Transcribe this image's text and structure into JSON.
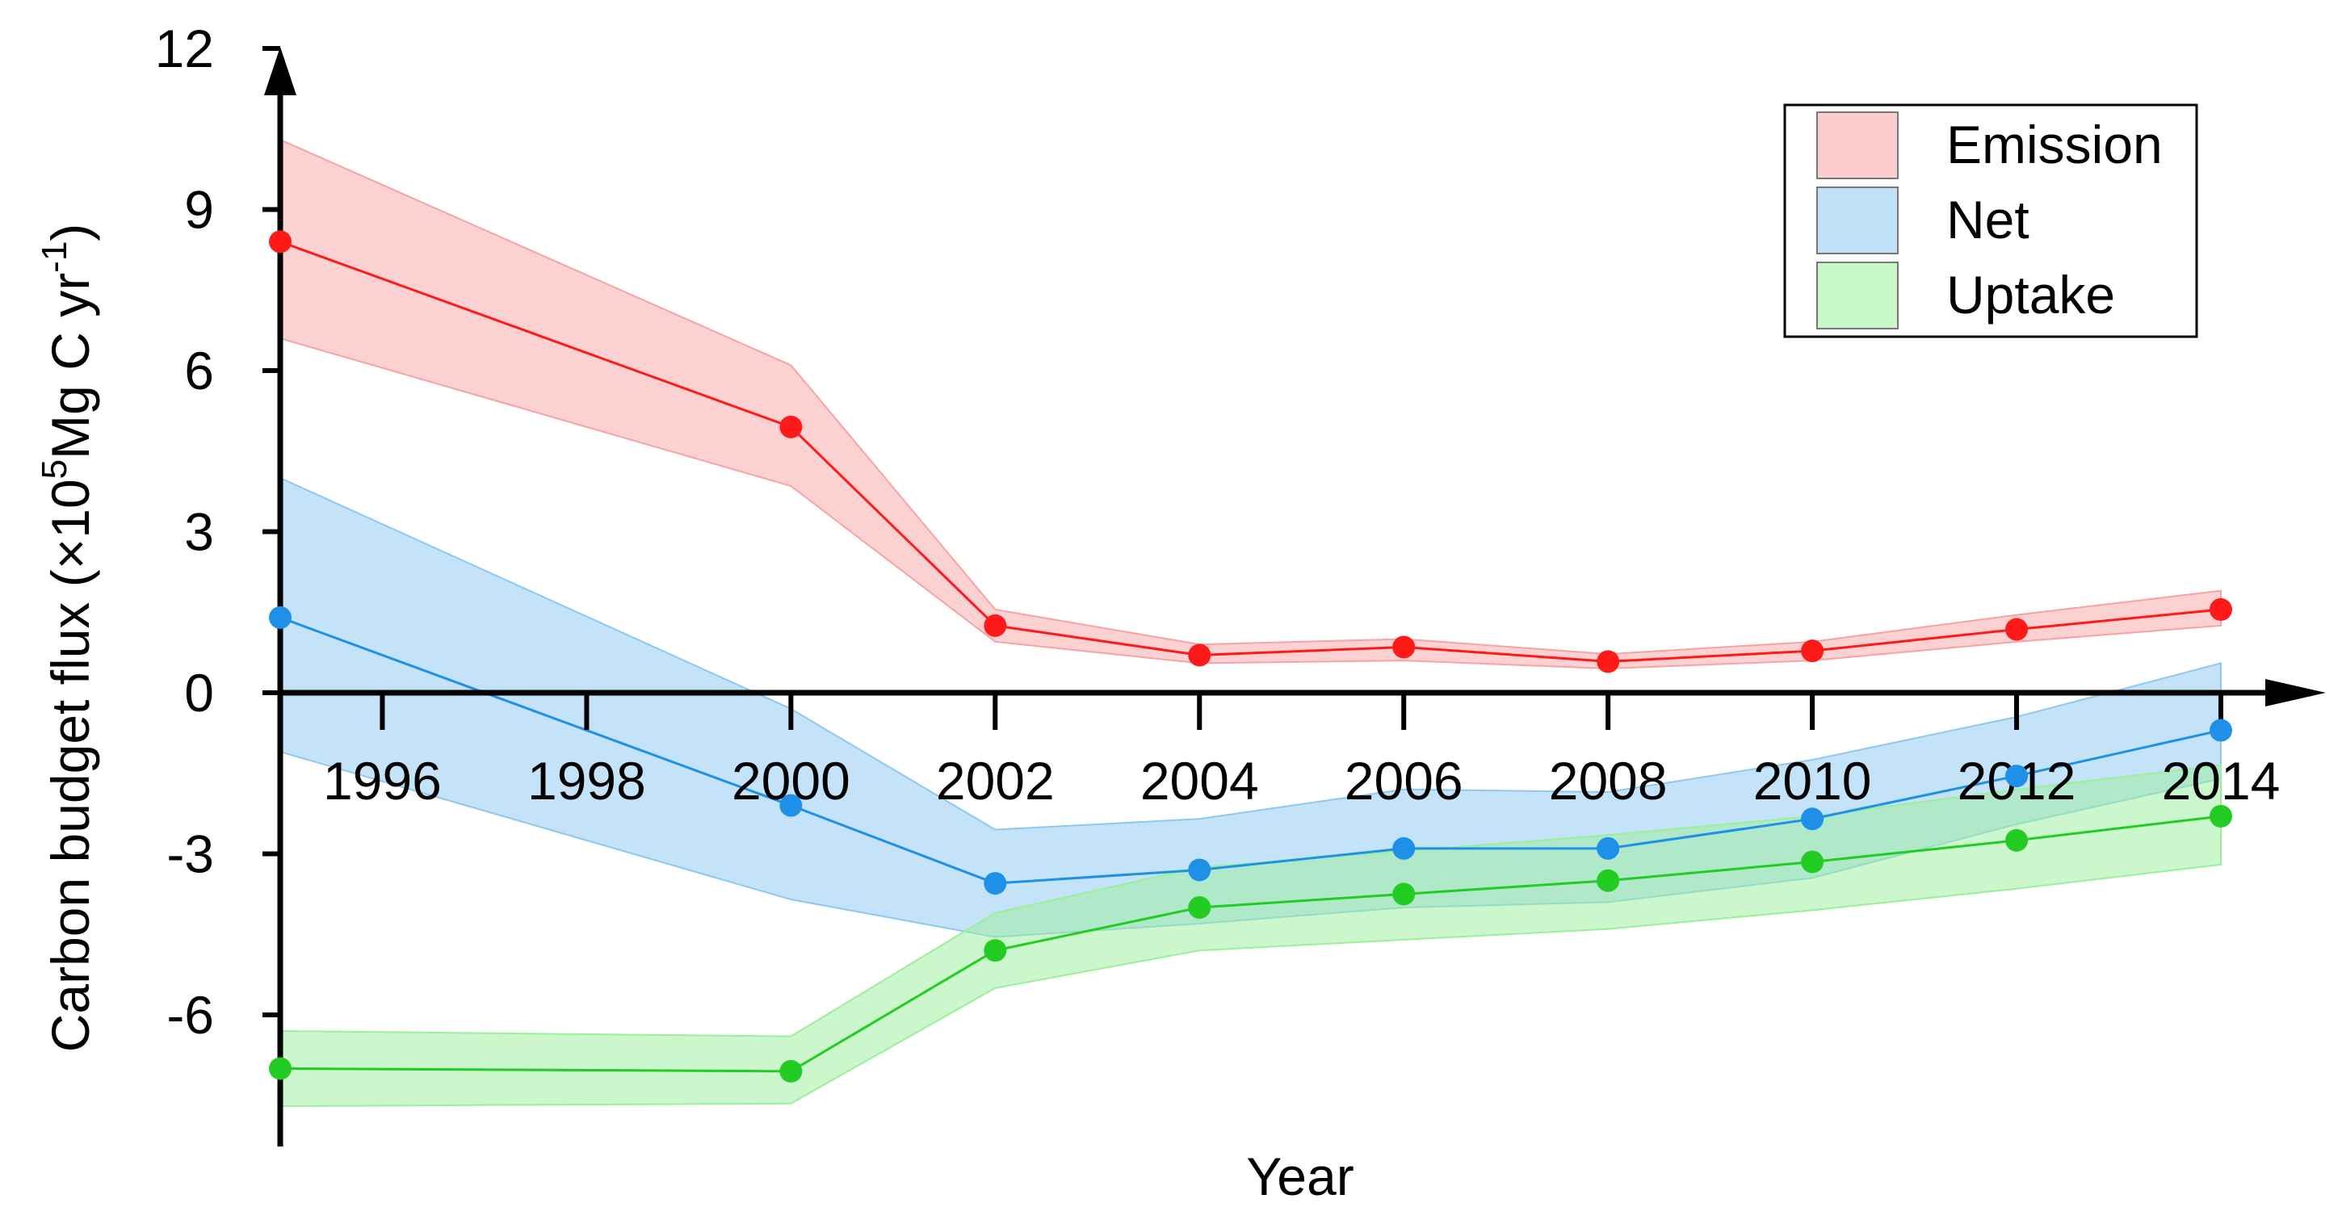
{
  "chart_data": {
    "type": "line",
    "title": "",
    "xlabel": "Year",
    "ylabel": {
      "prefix": "Carbon budget flux (×10",
      "exp1": "5",
      "mid": "Mg C yr",
      "exp2": "-1",
      "suffix": ")"
    },
    "xlim": [
      1995,
      2014
    ],
    "ylim": [
      -8,
      12
    ],
    "xticks": [
      1996,
      1998,
      2000,
      2002,
      2004,
      2006,
      2008,
      2010,
      2012,
      2014
    ],
    "yticks": [
      -6,
      -3,
      0,
      3,
      6,
      9,
      12
    ],
    "grid": false,
    "legend_position": "top-right",
    "series": [
      {
        "name": "Emission",
        "color": "#ff1a1a",
        "band_color": "#f8a3a3",
        "x": [
          1995,
          2000,
          2002,
          2004,
          2006,
          2008,
          2010,
          2012,
          2014
        ],
        "y": [
          8.4,
          4.95,
          1.25,
          0.7,
          0.85,
          0.58,
          0.78,
          1.18,
          1.55
        ],
        "lower": [
          6.6,
          3.85,
          0.95,
          0.55,
          0.6,
          0.45,
          0.6,
          0.95,
          1.25
        ],
        "upper": [
          10.3,
          6.1,
          1.55,
          0.9,
          1.0,
          0.72,
          0.95,
          1.45,
          1.9
        ]
      },
      {
        "name": "Net",
        "color": "#1e90e8",
        "band_color": "#8cc8f2",
        "x": [
          1995,
          2000,
          2002,
          2004,
          2006,
          2008,
          2010,
          2012,
          2014
        ],
        "y": [
          1.4,
          -2.1,
          -3.55,
          -3.3,
          -2.9,
          -2.9,
          -2.35,
          -1.55,
          -0.7
        ],
        "lower": [
          -1.1,
          -3.85,
          -4.55,
          -4.3,
          -4.0,
          -3.9,
          -3.45,
          -2.45,
          -1.6
        ],
        "upper": [
          4.0,
          -0.3,
          -2.55,
          -2.35,
          -1.8,
          -1.85,
          -1.25,
          -0.45,
          0.55
        ]
      },
      {
        "name": "Uptake",
        "color": "#22cc22",
        "band_color": "#9af09a",
        "x": [
          1995,
          2000,
          2002,
          2004,
          2006,
          2008,
          2010,
          2012,
          2014
        ],
        "y": [
          -7.0,
          -7.05,
          -4.8,
          -4.0,
          -3.75,
          -3.5,
          -3.15,
          -2.75,
          -2.3
        ],
        "lower": [
          -7.7,
          -7.65,
          -5.5,
          -4.8,
          -4.6,
          -4.4,
          -4.05,
          -3.65,
          -3.2
        ],
        "upper": [
          -6.3,
          -6.4,
          -4.1,
          -3.25,
          -2.95,
          -2.65,
          -2.3,
          -1.8,
          -1.35
        ]
      }
    ]
  }
}
